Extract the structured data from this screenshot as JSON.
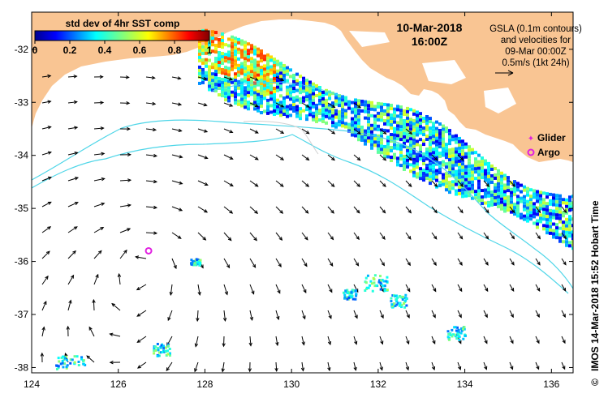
{
  "map": {
    "x_range": [
      124,
      136.5
    ],
    "y_range": [
      -38.1,
      -31.3
    ],
    "x_ticks": [
      124,
      126,
      128,
      130,
      132,
      134,
      136
    ],
    "y_ticks": [
      -32,
      -33,
      -34,
      -35,
      -36,
      -37,
      -38
    ]
  },
  "legend": {
    "title": "std dev of 4hr SST comp",
    "ticks": [
      "0",
      "0.2",
      "0.4",
      "0.6",
      "0.8",
      "1"
    ],
    "range": [
      0,
      1
    ]
  },
  "date": {
    "line1": "10-Mar-2018",
    "line2": "16:00Z"
  },
  "gsla_info": {
    "line1": "GSLA (0.1m contours)",
    "line2": "and velocities for",
    "line3": "09-Mar 00:00Z",
    "line4": "0.5m/s (1kt 24h)"
  },
  "markers": {
    "glider_label": "Glider",
    "argo_label": "Argo",
    "argo_position": {
      "lon": 126.7,
      "lat": -35.8
    }
  },
  "credit": {
    "text": "IMOS 14-Mar-2018 15:52 Hobart Time",
    "symbol": "©"
  },
  "colors": {
    "land": "#f9c593",
    "marker": "#e020e0",
    "contour": "#4fd6e8",
    "arrow": "#000000"
  }
}
